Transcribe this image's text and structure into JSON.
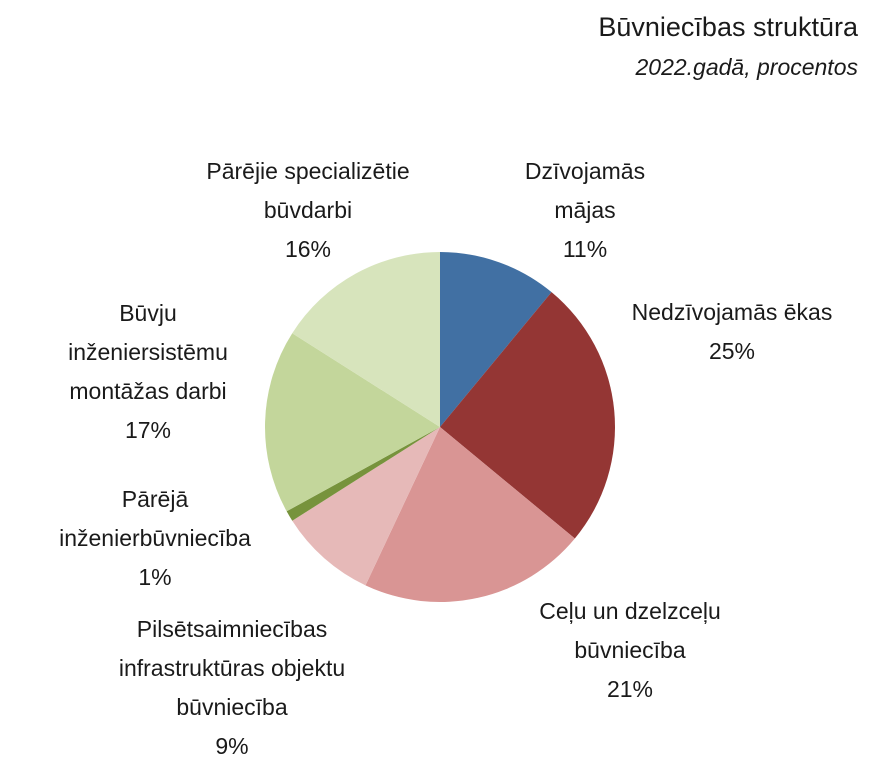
{
  "chart_data": {
    "type": "pie",
    "title": "Būvniecības struktūra",
    "subtitle": "2022.gadā, procentos",
    "categories": [
      "Dzīvojamās mājas",
      "Nedzīvojamās ēkas",
      "Ceļu un dzelzceļu būvniecība",
      "Pilsētsaimniecības infrastruktūras objektu būvniecība",
      "Pārējā inženierbūvniecība",
      "Būvju inženiersistēmu montāžas darbi",
      "Pārējie specializētie būvdarbi"
    ],
    "values": [
      11,
      25,
      21,
      9,
      1,
      17,
      16
    ],
    "value_labels": [
      "11%",
      "25%",
      "21%",
      "9%",
      "1%",
      "17%",
      "16%"
    ],
    "colors": [
      "#4170a3",
      "#943634",
      "#d99594",
      "#e6b9b8",
      "#77933c",
      "#c3d69b",
      "#d7e4bc"
    ]
  }
}
